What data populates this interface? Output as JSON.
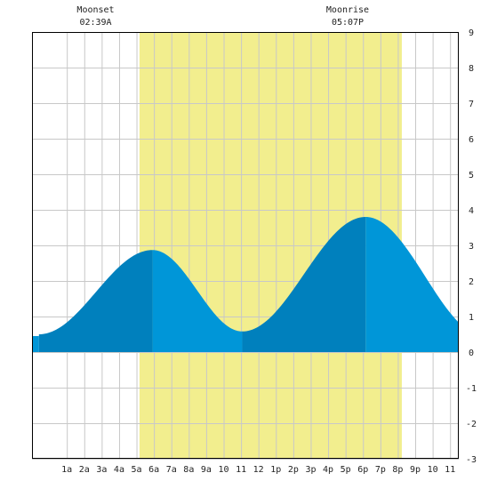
{
  "colors": {
    "background": "#ffffff",
    "grid": "#c8c8c8",
    "daylight": "#f2ee8e",
    "tide_rising": "#0080bd",
    "tide_falling": "#0096d8",
    "axis": "#000000"
  },
  "moon": {
    "moonset": {
      "label": "Moonset",
      "time": "02:39A",
      "hour": 2.65
    },
    "moonrise": {
      "label": "Moonrise",
      "time": "05:07P",
      "hour": 17.12
    }
  },
  "chart_data": {
    "type": "area",
    "title": "",
    "xlabel": "",
    "ylabel": "",
    "xlim": [
      -1.0,
      23.5
    ],
    "ylim": [
      -3,
      9
    ],
    "grid": true,
    "daylight": [
      5.17,
      20.23
    ],
    "y_ticks": [
      "9",
      "8",
      "7",
      "6",
      "5",
      "4",
      "3",
      "2",
      "1",
      "0",
      "-1",
      "-2",
      "-3"
    ],
    "x_ticks": [
      {
        "hour": 1,
        "label": "1a"
      },
      {
        "hour": 2,
        "label": "2a"
      },
      {
        "hour": 3,
        "label": "3a"
      },
      {
        "hour": 4,
        "label": "4a"
      },
      {
        "hour": 5,
        "label": "5a"
      },
      {
        "hour": 6,
        "label": "6a"
      },
      {
        "hour": 7,
        "label": "7a"
      },
      {
        "hour": 8,
        "label": "8a"
      },
      {
        "hour": 9,
        "label": "9a"
      },
      {
        "hour": 10,
        "label": "10"
      },
      {
        "hour": 11,
        "label": "11"
      },
      {
        "hour": 12,
        "label": "12"
      },
      {
        "hour": 13,
        "label": "1p"
      },
      {
        "hour": 14,
        "label": "2p"
      },
      {
        "hour": 15,
        "label": "3p"
      },
      {
        "hour": 16,
        "label": "4p"
      },
      {
        "hour": 17,
        "label": "5p"
      },
      {
        "hour": 18,
        "label": "6p"
      },
      {
        "hour": 19,
        "label": "7p"
      },
      {
        "hour": 20,
        "label": "8p"
      },
      {
        "hour": 21,
        "label": "9p"
      },
      {
        "hour": 22,
        "label": "10"
      },
      {
        "hour": 23,
        "label": "11"
      }
    ],
    "extremes": [
      {
        "hour": -0.6,
        "value": 0.5
      },
      {
        "hour": 5.92,
        "value": 2.87
      },
      {
        "hour": 11.07,
        "value": 0.58
      },
      {
        "hour": 18.15,
        "value": 3.8
      },
      {
        "hour": 25.0,
        "value": 0.45
      }
    ]
  }
}
